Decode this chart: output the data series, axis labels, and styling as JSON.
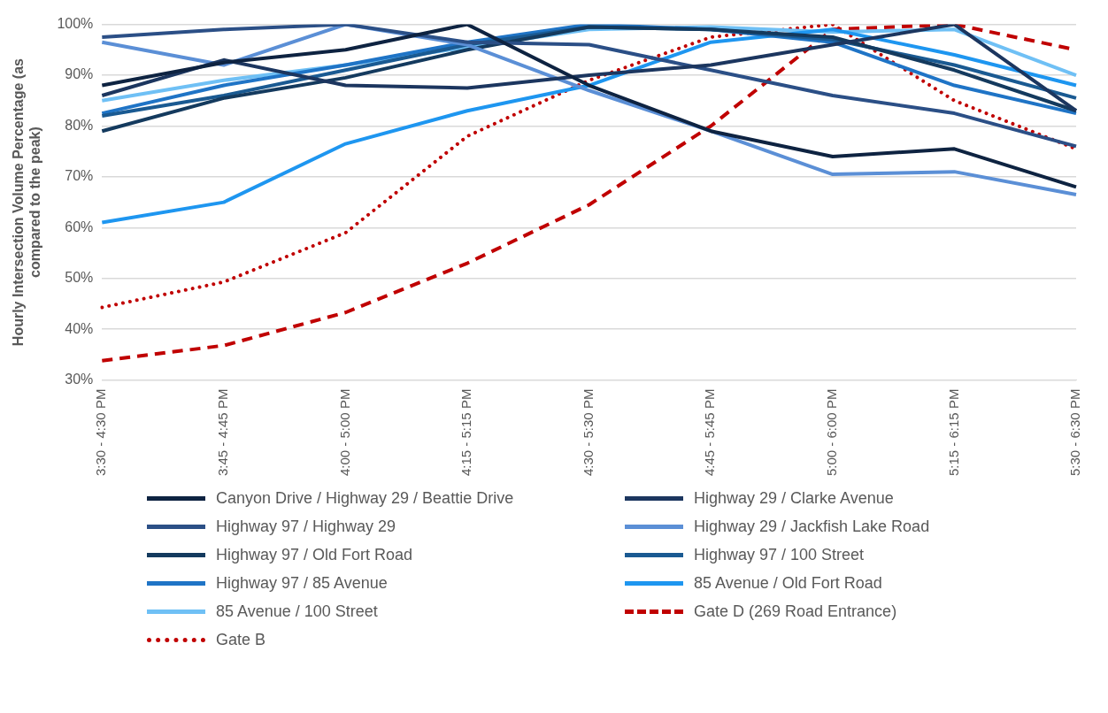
{
  "chart_data": {
    "type": "line",
    "ylabel": "Hourly Intersection Volume Percentage (as compared to the peak)",
    "categories": [
      "3:30 - 4:30 PM",
      "3:45 - 4:45 PM",
      "4:00 - 5:00 PM",
      "4:15 - 5:15 PM",
      "4:30 - 5:30 PM",
      "4:45 - 5:45 PM",
      "5:00 - 6:00 PM",
      "5:15 - 6:15 PM",
      "5:30 - 6:30 PM"
    ],
    "ylim": [
      30,
      100
    ],
    "yticks": [
      {
        "value": 30,
        "label": "30%"
      },
      {
        "value": 40,
        "label": "40%"
      },
      {
        "value": 50,
        "label": "50%"
      },
      {
        "value": 60,
        "label": "60%"
      },
      {
        "value": 70,
        "label": "70%"
      },
      {
        "value": 80,
        "label": "80%"
      },
      {
        "value": 90,
        "label": "90%"
      },
      {
        "value": 100,
        "label": "100%"
      }
    ],
    "grid": "y",
    "legend": "bottom",
    "marker": "none",
    "series": [
      {
        "name": "Canyon Drive / Highway 29 / Beattie Drive",
        "color": "#0e2341",
        "values": [
          88,
          92.5,
          95,
          100,
          88,
          79,
          74,
          75.5,
          68
        ]
      },
      {
        "name": "Highway 29 / Clarke Avenue",
        "color": "#1c365f",
        "values": [
          86,
          93,
          88,
          87.5,
          90,
          92,
          96,
          100,
          83
        ]
      },
      {
        "name": "Highway 97 / Highway 29",
        "color": "#2b4f86",
        "values": [
          97.5,
          99,
          100,
          96.5,
          96,
          91,
          86,
          82.5,
          76
        ]
      },
      {
        "name": "Highway 29 / Jackfish Lake Road",
        "color": "#5b8fd6",
        "values": [
          96.5,
          92,
          100,
          96,
          87,
          79,
          70.5,
          71,
          66.5
        ]
      },
      {
        "name": "Highway 97 / Old Fort Road",
        "color": "#143a5e",
        "values": [
          79,
          85.5,
          89.5,
          95,
          99.5,
          99,
          97.5,
          91,
          83
        ]
      },
      {
        "name": "Highway 97 / 100 Street",
        "color": "#1a5a92",
        "values": [
          82,
          86,
          91,
          96,
          99.5,
          99,
          97,
          92,
          85.5
        ]
      },
      {
        "name": "Highway 97 / 85 Avenue",
        "color": "#1f74c6",
        "values": [
          82.5,
          88,
          92,
          96.5,
          100,
          99,
          96.5,
          88,
          82.5
        ]
      },
      {
        "name": "85 Avenue / Old Fort Road",
        "color": "#1e96f0",
        "values": [
          61,
          65,
          76.5,
          83,
          88,
          96.5,
          99,
          94,
          88
        ]
      },
      {
        "name": "85 Avenue / 100 Street",
        "color": "#6fc0f5",
        "values": [
          85,
          89,
          92,
          95.5,
          99,
          99.5,
          98.5,
          99,
          90
        ]
      },
      {
        "name": "Gate D (269 Road Entrance)",
        "color": "#c00000",
        "line_style": "dashed",
        "values": [
          33.8,
          36.8,
          43.3,
          53,
          64.5,
          80,
          99,
          100,
          95
        ]
      },
      {
        "name": "Gate B",
        "color": "#c00000",
        "line_style": "dotted",
        "values": [
          44.3,
          49.3,
          59,
          78,
          89,
          97.5,
          100,
          85,
          75.5
        ]
      }
    ]
  }
}
